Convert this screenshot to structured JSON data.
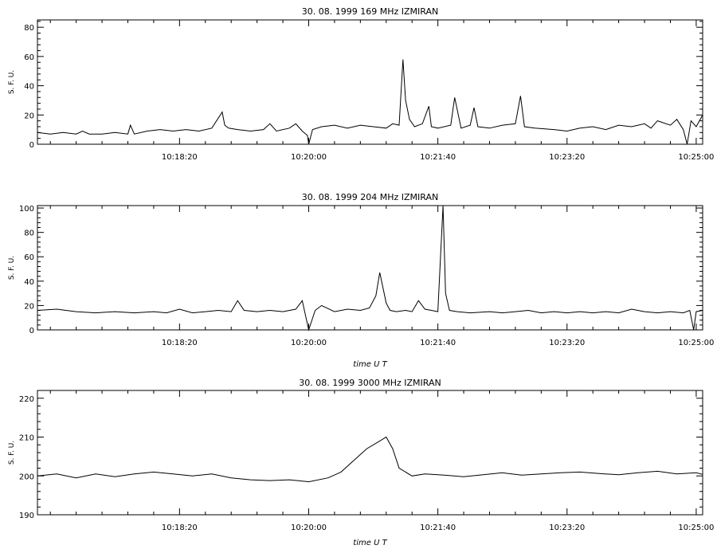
{
  "chart_data": [
    {
      "type": "line",
      "title": "30. 08. 1999    169 MHz    IZMIRAN",
      "ylabel": "S. F. U.",
      "xlabel": "",
      "xlim": [
        "10:16:30",
        "10:25:05"
      ],
      "ylim": [
        0,
        85
      ],
      "yticks": [
        0,
        20,
        40,
        60,
        80
      ],
      "xticks": [
        "10:18:20",
        "10:20:00",
        "10:21:40",
        "10:23:20",
        "10:25:00"
      ],
      "series": [
        {
          "x": [
            "10:16:30",
            "10:16:40",
            "10:16:50",
            "10:17:00",
            "10:17:05",
            "10:17:10",
            "10:17:20",
            "10:17:30",
            "10:17:40",
            "10:17:42",
            "10:17:45",
            "10:17:55",
            "10:18:05",
            "10:18:15",
            "10:18:25",
            "10:18:35",
            "10:18:45",
            "10:18:53",
            "10:18:55",
            "10:18:58",
            "10:19:05",
            "10:19:15",
            "10:19:25",
            "10:19:30",
            "10:19:35",
            "10:19:45",
            "10:19:50",
            "10:19:55",
            "10:19:59",
            "10:20:00",
            "10:20:03",
            "10:20:10",
            "10:20:20",
            "10:20:30",
            "10:20:40",
            "10:20:50",
            "10:21:00",
            "10:21:05",
            "10:21:10",
            "10:21:13",
            "10:21:15",
            "10:21:18",
            "10:21:22",
            "10:21:28",
            "10:21:33",
            "10:21:35",
            "10:21:40",
            "10:21:50",
            "10:21:53",
            "10:21:58",
            "10:22:05",
            "10:22:08",
            "10:22:11",
            "10:22:20",
            "10:22:30",
            "10:22:40",
            "10:22:44",
            "10:22:47",
            "10:22:55",
            "10:23:10",
            "10:23:20",
            "10:23:30",
            "10:23:40",
            "10:23:50",
            "10:24:00",
            "10:24:10",
            "10:24:20",
            "10:24:25",
            "10:24:30",
            "10:24:40",
            "10:24:45",
            "10:24:50",
            "10:24:53",
            "10:24:56",
            "10:25:00",
            "10:25:05"
          ],
          "y": [
            8,
            7,
            8,
            7,
            9,
            7,
            7,
            8,
            7,
            13,
            7,
            9,
            10,
            9,
            10,
            9,
            11,
            22,
            13,
            11,
            10,
            9,
            10,
            14,
            9,
            11,
            14,
            9,
            6,
            0,
            10,
            12,
            13,
            11,
            13,
            12,
            11,
            14,
            13,
            58,
            30,
            17,
            12,
            14,
            26,
            12,
            11,
            13,
            32,
            11,
            13,
            25,
            12,
            11,
            13,
            14,
            33,
            12,
            11,
            10,
            9,
            11,
            12,
            10,
            13,
            12,
            14,
            11,
            16,
            13,
            17,
            10,
            0,
            16,
            12,
            20
          ]
        }
      ]
    },
    {
      "type": "line",
      "title": "30. 08. 1999    204 MHz    IZMIRAN",
      "ylabel": "S. F. U.",
      "xlabel": "time   U T",
      "xlim": [
        "10:16:30",
        "10:25:05"
      ],
      "ylim": [
        0,
        102
      ],
      "yticks": [
        0,
        20,
        40,
        60,
        80,
        100
      ],
      "xticks": [
        "10:18:20",
        "10:20:00",
        "10:21:40",
        "10:23:20",
        "10:25:00"
      ],
      "series": [
        {
          "x": [
            "10:16:30",
            "10:16:45",
            "10:17:00",
            "10:17:15",
            "10:17:30",
            "10:17:45",
            "10:18:00",
            "10:18:10",
            "10:18:20",
            "10:18:30",
            "10:18:40",
            "10:18:50",
            "10:19:00",
            "10:19:05",
            "10:19:10",
            "10:19:20",
            "10:19:30",
            "10:19:40",
            "10:19:50",
            "10:19:55",
            "10:20:00",
            "10:20:05",
            "10:20:10",
            "10:20:20",
            "10:20:30",
            "10:20:40",
            "10:20:47",
            "10:20:52",
            "10:20:55",
            "10:21:00",
            "10:21:03",
            "10:21:08",
            "10:21:15",
            "10:21:20",
            "10:21:25",
            "10:21:30",
            "10:21:35",
            "10:21:40",
            "10:21:44",
            "10:21:46",
            "10:21:49",
            "10:21:55",
            "10:22:05",
            "10:22:20",
            "10:22:30",
            "10:22:40",
            "10:22:50",
            "10:23:00",
            "10:23:10",
            "10:23:20",
            "10:23:30",
            "10:23:40",
            "10:23:50",
            "10:24:00",
            "10:24:10",
            "10:24:20",
            "10:24:30",
            "10:24:40",
            "10:24:50",
            "10:24:55",
            "10:24:58",
            "10:25:00",
            "10:25:05"
          ],
          "y": [
            16,
            17,
            15,
            14,
            15,
            14,
            15,
            14,
            17,
            14,
            15,
            16,
            15,
            24,
            16,
            15,
            16,
            15,
            17,
            24,
            0,
            16,
            20,
            15,
            17,
            16,
            18,
            28,
            47,
            22,
            16,
            15,
            16,
            15,
            24,
            17,
            16,
            15,
            102,
            30,
            16,
            15,
            14,
            15,
            14,
            15,
            16,
            14,
            15,
            14,
            15,
            14,
            15,
            14,
            17,
            15,
            14,
            15,
            14,
            16,
            0,
            15,
            16
          ]
        }
      ]
    },
    {
      "type": "line",
      "title": "30. 08. 1999    3000 MHz    IZMIRAN",
      "ylabel": "S. F. U.",
      "xlabel": "time   U T",
      "xlim": [
        "10:16:30",
        "10:25:05"
      ],
      "ylim": [
        190,
        222
      ],
      "yticks": [
        190,
        200,
        210,
        220
      ],
      "xticks": [
        "10:18:20",
        "10:20:00",
        "10:21:40",
        "10:23:20",
        "10:25:00"
      ],
      "series": [
        {
          "x": [
            "10:16:30",
            "10:16:45",
            "10:17:00",
            "10:17:15",
            "10:17:30",
            "10:17:45",
            "10:18:00",
            "10:18:15",
            "10:18:30",
            "10:18:45",
            "10:19:00",
            "10:19:15",
            "10:19:30",
            "10:19:45",
            "10:20:00",
            "10:20:15",
            "10:20:25",
            "10:20:35",
            "10:20:45",
            "10:20:55",
            "10:21:00",
            "10:21:05",
            "10:21:10",
            "10:21:20",
            "10:21:30",
            "10:21:45",
            "10:22:00",
            "10:22:15",
            "10:22:30",
            "10:22:45",
            "10:23:00",
            "10:23:15",
            "10:23:30",
            "10:23:45",
            "10:24:00",
            "10:24:15",
            "10:24:30",
            "10:24:45",
            "10:25:00",
            "10:25:05"
          ],
          "y": [
            200,
            200.5,
            199.5,
            200.5,
            199.8,
            200.5,
            201,
            200.5,
            200,
            200.5,
            199.5,
            199,
            198.8,
            199,
            198.5,
            199.5,
            201,
            204,
            207,
            209,
            210,
            207,
            202,
            200,
            200.5,
            200.2,
            199.8,
            200.3,
            200.8,
            200.2,
            200.5,
            200.8,
            201,
            200.6,
            200.3,
            200.8,
            201.2,
            200.5,
            200.8,
            200.4
          ]
        }
      ]
    }
  ]
}
